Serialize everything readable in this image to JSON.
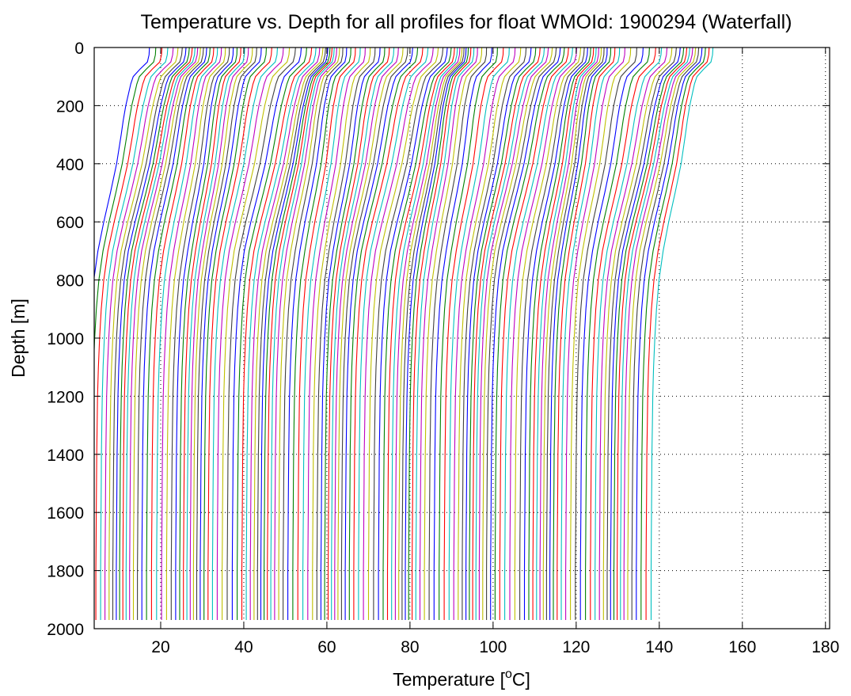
{
  "chart_data": {
    "type": "line",
    "title": "Temperature vs. Depth for all profiles for float WMOId: 1900294 (Waterfall)",
    "xlabel_prefix": "Temperature [",
    "xlabel_sup": "o",
    "xlabel_suffix": "C]",
    "ylabel": "Depth [m]",
    "xlim": [
      4,
      181
    ],
    "ylim": [
      2000,
      0
    ],
    "y_reversed": true,
    "grid": "dotted",
    "legend": "none",
    "xticks": [
      20,
      40,
      60,
      80,
      100,
      120,
      140,
      160,
      180
    ],
    "yticks": [
      0,
      200,
      400,
      600,
      800,
      1000,
      1200,
      1400,
      1600,
      1800,
      2000
    ],
    "series_colors": [
      "#0000ff",
      "#008000",
      "#ff0000",
      "#00bfbf",
      "#bf00bf",
      "#bfbf00",
      "#404040"
    ],
    "profile_count": 137,
    "profile_offset_per_step": 1,
    "profile_max_depth": 1970,
    "depth_samples": [
      0,
      25,
      50,
      75,
      100,
      125,
      150,
      200,
      250,
      300,
      400,
      500,
      600,
      700,
      800,
      900,
      1000,
      1100,
      1200,
      1300,
      1400,
      1500,
      1600,
      1700,
      1800,
      1900,
      1970
    ],
    "base_profile_temp": [
      17.3,
      17.2,
      16.8,
      15.0,
      13.4,
      12.8,
      12.4,
      11.6,
      11.0,
      10.5,
      9.4,
      7.9,
      6.3,
      4.9,
      3.9,
      3.3,
      2.9,
      2.6,
      2.4,
      2.3,
      2.2,
      2.15,
      2.1,
      2.05,
      2.0,
      2.0,
      2.0
    ]
  }
}
